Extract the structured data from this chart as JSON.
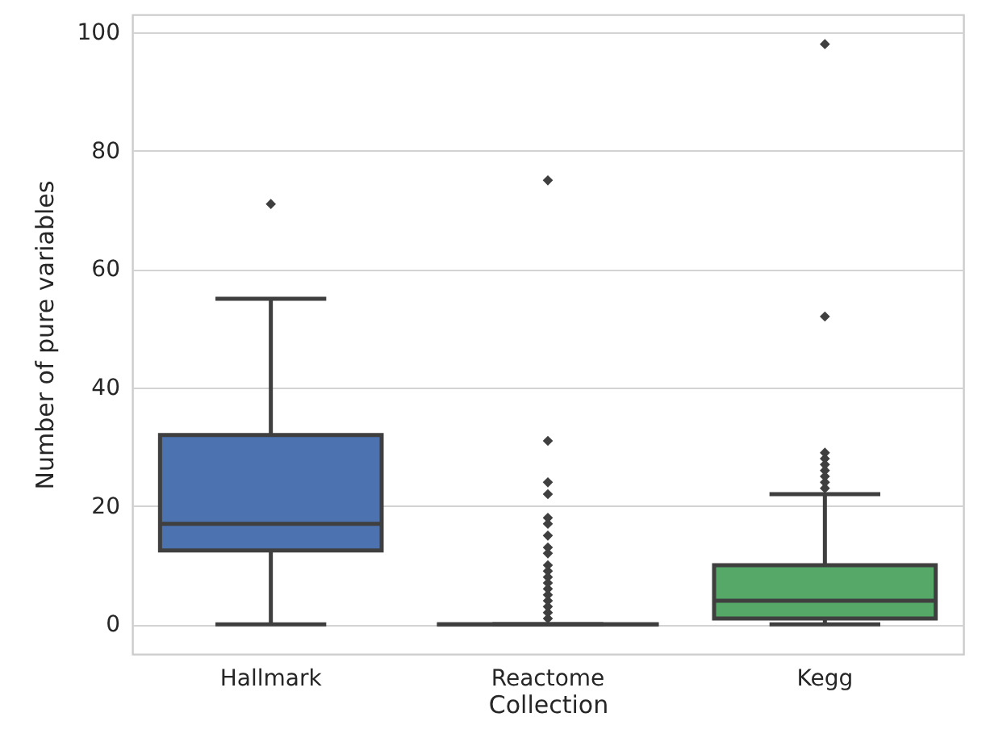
{
  "chart_data": {
    "type": "box",
    "xlabel": "Collection",
    "ylabel": "Number of pure variables",
    "categories": [
      "Hallmark",
      "Reactome",
      "Kegg"
    ],
    "colors": [
      "#4c72b0",
      "#3f3f3f",
      "#55a868"
    ],
    "boxes": [
      {
        "low": 0,
        "q1": 12.5,
        "median": 17,
        "q3": 32,
        "high": 55,
        "outliers": [
          71
        ]
      },
      {
        "low": 0,
        "q1": 0,
        "median": 0,
        "q3": 0,
        "high": 0,
        "outliers": [
          1,
          2,
          3,
          4,
          5,
          6,
          7,
          8,
          9,
          10,
          12,
          13,
          15,
          17,
          18,
          22,
          24,
          31,
          75
        ]
      },
      {
        "low": 0,
        "q1": 1,
        "median": 4,
        "q3": 10,
        "high": 22,
        "outliers": [
          23,
          24,
          25,
          26,
          27,
          28,
          29,
          52,
          98
        ]
      }
    ],
    "ylim": [
      -5,
      103
    ],
    "yticks": [
      0,
      20,
      40,
      60,
      80,
      100
    ],
    "grid": "y"
  }
}
